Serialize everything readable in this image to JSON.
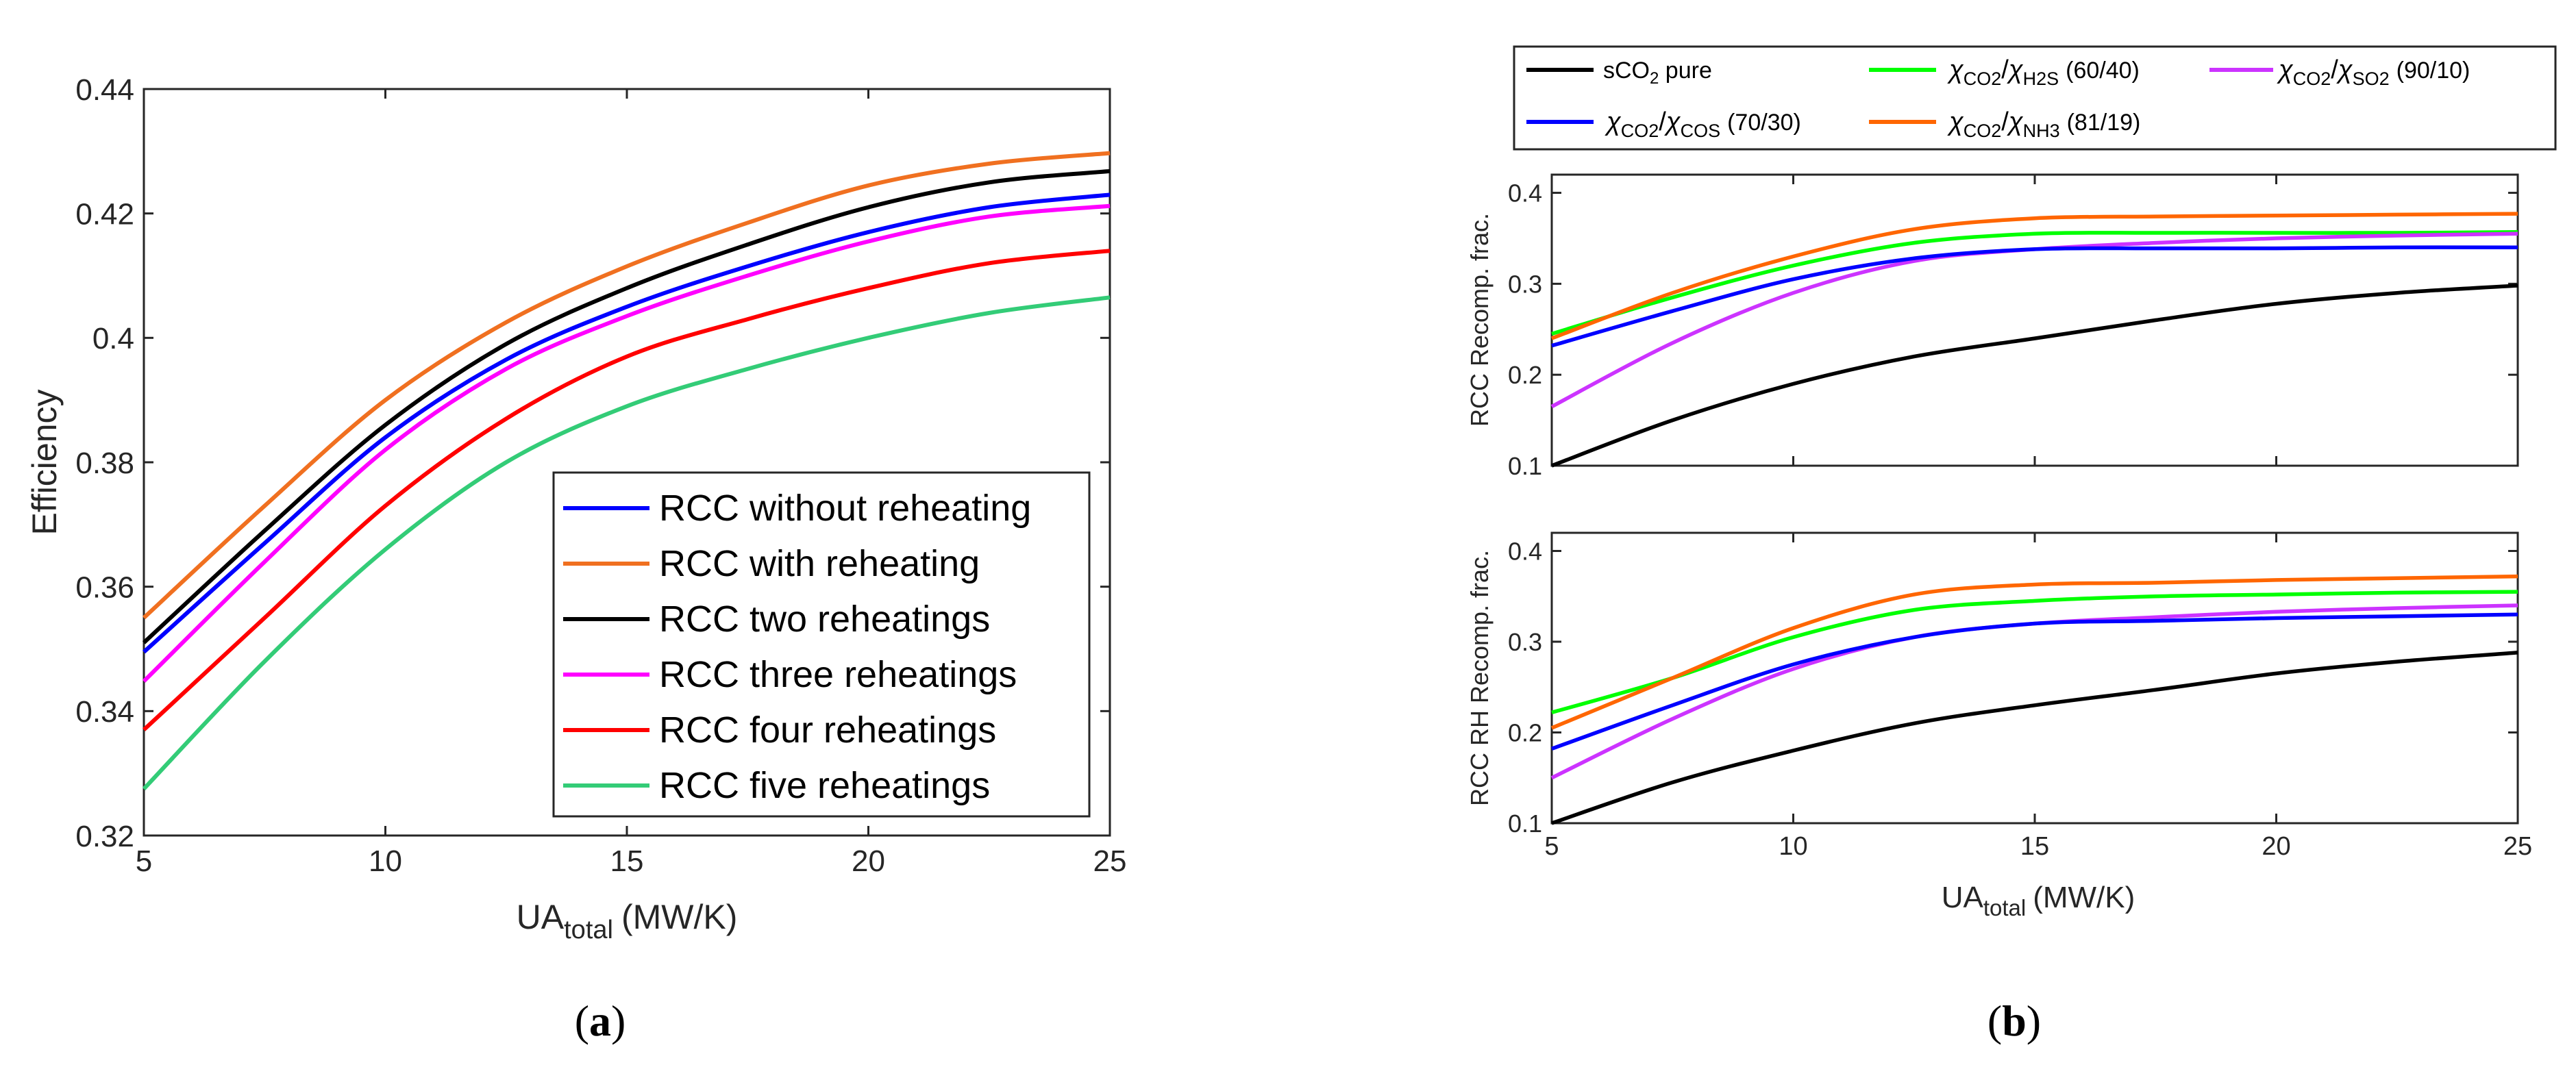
{
  "chart_data": [
    {
      "type": "line",
      "panel": "a",
      "caption": "(a)",
      "caption_letter": "a",
      "xlabel_main": "UA",
      "xlabel_sub": "total",
      "xlabel_unit": "(MW/K)",
      "ylabel": "Efficiency",
      "xlim": [
        5,
        25
      ],
      "ylim": [
        0.32,
        0.44
      ],
      "xticks": [
        5,
        10,
        15,
        20,
        25
      ],
      "yticks": [
        0.32,
        0.34,
        0.36,
        0.38,
        0.4,
        0.42,
        0.44
      ],
      "ytick_labels": [
        "0.32",
        "0.34",
        "0.36",
        "0.38",
        "0.4",
        "0.42",
        "0.44"
      ],
      "legend_position": "bottom-right",
      "x": [
        5,
        7.5,
        10,
        12.5,
        15,
        17.5,
        20,
        22.5,
        25
      ],
      "series": [
        {
          "name": "RCC without reheating",
          "color": "#0000ff",
          "values": [
            0.3495,
            0.367,
            0.384,
            0.3965,
            0.405,
            0.4115,
            0.417,
            0.421,
            0.423
          ]
        },
        {
          "name": "RCC with reheating",
          "color": "#f07020",
          "values": [
            0.355,
            0.373,
            0.39,
            0.4025,
            0.4115,
            0.4185,
            0.4245,
            0.428,
            0.4297
          ]
        },
        {
          "name": "RCC two reheatings",
          "color": "#000000",
          "values": [
            0.351,
            0.369,
            0.386,
            0.399,
            0.408,
            0.415,
            0.421,
            0.425,
            0.4268
          ]
        },
        {
          "name": "RCC three reheatings",
          "color": "#ff00ff",
          "values": [
            0.3448,
            0.364,
            0.382,
            0.395,
            0.4035,
            0.41,
            0.4155,
            0.4195,
            0.4212
          ]
        },
        {
          "name": "RCC four reheatings",
          "color": "#ff0000",
          "values": [
            0.337,
            0.355,
            0.373,
            0.387,
            0.397,
            0.403,
            0.408,
            0.412,
            0.414
          ]
        },
        {
          "name": "RCC five reheatings",
          "color": "#33cc77",
          "values": [
            0.3275,
            0.348,
            0.366,
            0.38,
            0.389,
            0.395,
            0.4,
            0.404,
            0.4065
          ]
        }
      ]
    },
    {
      "type": "line",
      "panel": "b",
      "caption": "(b)",
      "caption_letter": "b",
      "xlabel_main": "UA",
      "xlabel_sub": "total",
      "xlabel_unit": "(MW/K)",
      "xlim": [
        5,
        25
      ],
      "xticks": [
        5,
        10,
        15,
        20,
        25
      ],
      "legend_position": "top",
      "legend": [
        {
          "key": "pure",
          "color": "#000000",
          "prefix": "sCO",
          "sub": "2",
          "suffix": " pure"
        },
        {
          "key": "h2s",
          "color": "#00ff00",
          "chi": "χ",
          "sub1": "CO2",
          "slash": "/",
          "sub2": "H2S",
          "ratio": "(60/40)"
        },
        {
          "key": "so2",
          "color": "#cc33ff",
          "chi": "χ",
          "sub1": "CO2",
          "slash": "/",
          "sub2": "SO2",
          "ratio": "(90/10)"
        },
        {
          "key": "cos",
          "color": "#0000ff",
          "chi": "χ",
          "sub1": "CO2",
          "slash": "/",
          "sub2": "COS",
          "ratio": "(70/30)"
        },
        {
          "key": "nh3",
          "color": "#ff6600",
          "chi": "χ",
          "sub1": "CO2",
          "slash": "/",
          "sub2": "NH3",
          "ratio": "(81/19)"
        }
      ],
      "subplots": [
        {
          "ylabel": "RCC Recomp. frac.",
          "ylim": [
            0.1,
            0.42
          ],
          "yticks": [
            0.1,
            0.2,
            0.3,
            0.4
          ],
          "ytick_labels": [
            "0.1",
            "0.2",
            "0.3",
            "0.4"
          ],
          "x": [
            5,
            7.5,
            10,
            12.5,
            15,
            17.5,
            20,
            22.5,
            25
          ],
          "series": [
            {
              "key": "pure",
              "values": [
                0.1,
                0.15,
                0.19,
                0.22,
                0.24,
                0.26,
                0.278,
                0.29,
                0.298
              ]
            },
            {
              "key": "h2s",
              "values": [
                0.245,
                0.285,
                0.32,
                0.345,
                0.355,
                0.356,
                0.356,
                0.356,
                0.357
              ]
            },
            {
              "key": "so2",
              "values": [
                0.165,
                0.235,
                0.29,
                0.325,
                0.338,
                0.345,
                0.35,
                0.353,
                0.355
              ]
            },
            {
              "key": "cos",
              "values": [
                0.232,
                0.27,
                0.305,
                0.328,
                0.338,
                0.339,
                0.339,
                0.34,
                0.34
              ]
            },
            {
              "key": "nh3",
              "values": [
                0.24,
                0.29,
                0.33,
                0.36,
                0.372,
                0.374,
                0.375,
                0.376,
                0.377
              ]
            }
          ]
        },
        {
          "ylabel": "RCC RH Recomp. frac.",
          "ylim": [
            0.1,
            0.42
          ],
          "yticks": [
            0.1,
            0.2,
            0.3,
            0.4
          ],
          "ytick_labels": [
            "0.1",
            "0.2",
            "0.3",
            "0.4"
          ],
          "x": [
            5,
            7.5,
            10,
            12.5,
            15,
            17.5,
            20,
            22.5,
            25
          ],
          "series": [
            {
              "key": "pure",
              "values": [
                0.1,
                0.145,
                0.18,
                0.21,
                0.23,
                0.247,
                0.265,
                0.278,
                0.288
              ]
            },
            {
              "key": "h2s",
              "values": [
                0.222,
                0.26,
                0.305,
                0.335,
                0.345,
                0.35,
                0.352,
                0.354,
                0.355
              ]
            },
            {
              "key": "so2",
              "values": [
                0.15,
                0.215,
                0.27,
                0.305,
                0.32,
                0.327,
                0.333,
                0.337,
                0.34
              ]
            },
            {
              "key": "cos",
              "values": [
                0.182,
                0.23,
                0.275,
                0.305,
                0.32,
                0.323,
                0.326,
                0.328,
                0.33
              ]
            },
            {
              "key": "nh3",
              "values": [
                0.205,
                0.26,
                0.315,
                0.352,
                0.363,
                0.365,
                0.368,
                0.37,
                0.372
              ]
            }
          ]
        }
      ]
    }
  ]
}
